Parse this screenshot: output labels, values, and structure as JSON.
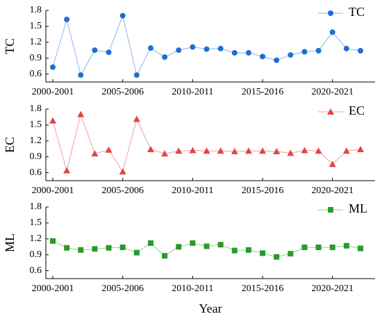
{
  "chart_data": [
    {
      "type": "line",
      "ylabel": "TC",
      "categories": [
        "2000-2001",
        null,
        null,
        null,
        null,
        "2005-2006",
        null,
        null,
        null,
        null,
        "2010-2011",
        null,
        null,
        null,
        null,
        "2015-2016",
        null,
        null,
        null,
        null,
        "2020-2021",
        null,
        null
      ],
      "series": [
        {
          "name": "TC",
          "color": "#1f6fd1",
          "line_color": "#8ab4e8",
          "marker": "circle",
          "values": [
            0.73,
            1.63,
            0.58,
            1.05,
            1.01,
            1.7,
            0.58,
            1.09,
            0.92,
            1.05,
            1.11,
            1.07,
            1.08,
            1.0,
            1.0,
            0.93,
            0.86,
            0.96,
            1.02,
            1.04,
            1.39,
            1.08,
            1.04
          ]
        }
      ],
      "ylim": [
        0.45,
        1.8
      ],
      "yticks": [
        0.6,
        0.9,
        1.2,
        1.5,
        1.8
      ],
      "legend": "upper right"
    },
    {
      "type": "line",
      "ylabel": "EC",
      "categories": [
        "2000-2001",
        null,
        null,
        null,
        null,
        "2005-2006",
        null,
        null,
        null,
        null,
        "2010-2011",
        null,
        null,
        null,
        null,
        "2015-2016",
        null,
        null,
        null,
        null,
        "2020-2021",
        null,
        null
      ],
      "series": [
        {
          "name": "EC",
          "color": "#e04646",
          "line_color": "#f0a0a0",
          "marker": "triangle",
          "values": [
            1.58,
            0.64,
            1.7,
            0.96,
            1.03,
            0.62,
            1.61,
            1.04,
            0.96,
            1.01,
            1.02,
            1.01,
            1.01,
            1.0,
            1.01,
            1.01,
            1.0,
            0.97,
            1.02,
            1.01,
            0.76,
            1.01,
            1.04
          ]
        }
      ],
      "ylim": [
        0.45,
        1.8
      ],
      "yticks": [
        0.6,
        0.9,
        1.2,
        1.5,
        1.8
      ],
      "legend": "upper right"
    },
    {
      "type": "line",
      "ylabel": "ML",
      "xlabel": "Year",
      "categories": [
        "2000-2001",
        null,
        null,
        null,
        null,
        "2005-2006",
        null,
        null,
        null,
        null,
        "2010-2011",
        null,
        null,
        null,
        null,
        "2015-2016",
        null,
        null,
        null,
        null,
        "2020-2021",
        null,
        null
      ],
      "series": [
        {
          "name": "ML",
          "color": "#2a9a2a",
          "line_color": "#8fcf8f",
          "marker": "square",
          "values": [
            1.16,
            1.03,
            0.99,
            1.01,
            1.03,
            1.04,
            0.94,
            1.12,
            0.88,
            1.05,
            1.12,
            1.06,
            1.09,
            0.98,
            0.99,
            0.93,
            0.86,
            0.92,
            1.04,
            1.04,
            1.04,
            1.07,
            1.02
          ]
        }
      ],
      "ylim": [
        0.45,
        1.8
      ],
      "yticks": [
        0.6,
        0.9,
        1.2,
        1.5,
        1.8
      ],
      "legend": "upper right"
    }
  ]
}
